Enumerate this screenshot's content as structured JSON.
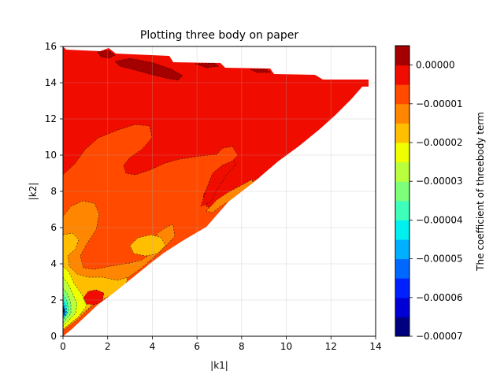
{
  "chart_data": {
    "type": "contour",
    "title": "Plotting three body on paper",
    "xlabel": "|k1|",
    "ylabel": "|k2|",
    "xlim": [
      0,
      14
    ],
    "ylim": [
      0,
      16
    ],
    "x_ticks": [
      "0",
      "2",
      "4",
      "6",
      "8",
      "10",
      "12",
      "14"
    ],
    "y_ticks": [
      "0",
      "2",
      "4",
      "6",
      "8",
      "10",
      "12",
      "14",
      "16"
    ],
    "grid": true,
    "colormap": "jet",
    "colorbar": {
      "label": "The coefficient of threebody term",
      "range": [
        -7e-05,
        5e-06
      ],
      "levels": [
        -7e-05,
        -6.5e-05,
        -6e-05,
        -5.5e-05,
        -5e-05,
        -4.5e-05,
        -4e-05,
        -3.5e-05,
        -3e-05,
        -2.5e-05,
        -2e-05,
        -1.5e-05,
        -1e-05,
        -5e-06,
        0.0,
        5e-06
      ],
      "tick_labels": [
        "0.00000",
        "−0.00001",
        "−0.00002",
        "−0.00003",
        "−0.00004",
        "−0.00005",
        "−0.00006",
        "−0.00007"
      ],
      "tick_values": [
        0.0,
        -1e-05,
        -2e-05,
        -3e-05,
        -4e-05,
        -5e-05,
        -6e-05,
        -7e-05
      ],
      "band_colors": [
        "#00007f",
        "#0000d6",
        "#0020ff",
        "#0068ff",
        "#00b0ff",
        "#00f0f0",
        "#3dffba",
        "#7dff7a",
        "#baff3d",
        "#f0ff00",
        "#ffbf00",
        "#ff8600",
        "#ff4a00",
        "#f10c00",
        "#a40000"
      ]
    },
    "domain": {
      "shape": "triangle-like region above the diagonal |k2| ≈ 1.15·|k1|, bounded by |k2| ≤ 16 and |k1| ≤ 14",
      "upper_region_value": -2.5e-06,
      "peak_value_near": {
        "x": 4.5,
        "y": 14.8,
        "value": 3e-06
      },
      "minimum_value_near": {
        "x": 0.1,
        "y": 1.2,
        "value": -7e-05
      }
    }
  }
}
